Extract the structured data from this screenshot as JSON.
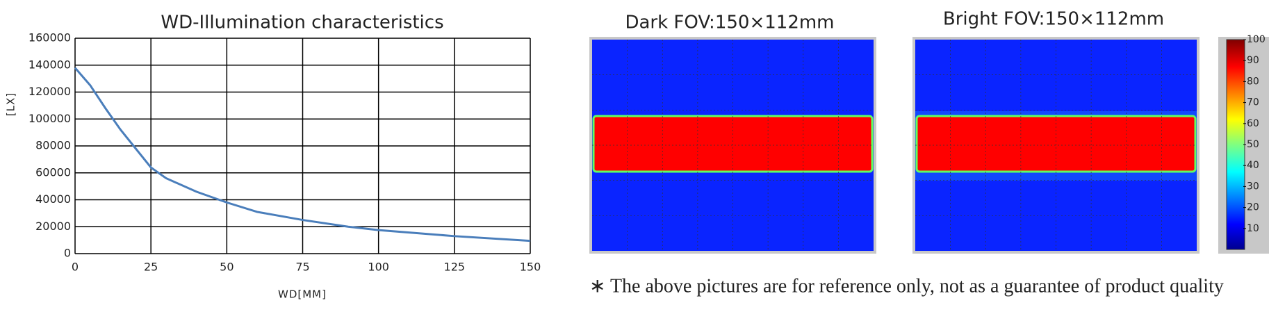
{
  "chart_data": {
    "type": "line",
    "title": "WD-Illumination characteristics",
    "x_label": "WD[MM]",
    "y_label": "[LX]",
    "x": [
      0,
      5,
      10,
      15,
      20,
      25,
      30,
      40,
      50,
      60,
      75,
      90,
      100,
      125,
      150
    ],
    "values": [
      138000,
      125000,
      108000,
      92000,
      78000,
      64000,
      56000,
      46000,
      38000,
      31000,
      25000,
      20000,
      17500,
      13000,
      9500
    ],
    "color": "#4a7ebb",
    "xlim": [
      0,
      150
    ],
    "xticks": [
      0,
      25,
      50,
      75,
      100,
      125,
      150
    ],
    "ylim": [
      0,
      160000
    ],
    "yticks": [
      0,
      20000,
      40000,
      60000,
      80000,
      100000,
      120000,
      140000,
      160000
    ],
    "grid": true
  },
  "fov": {
    "panels": [
      {
        "title": "Dark FOV:150×112mm"
      },
      {
        "title": "Bright FOV:150×112mm"
      }
    ],
    "colorbar": {
      "lim": [
        0,
        100
      ],
      "ticks": [
        10,
        20,
        30,
        40,
        50,
        60,
        70,
        80,
        90,
        100
      ]
    },
    "note": "∗ The above pictures are for reference only, not as a guarantee of product quality"
  }
}
